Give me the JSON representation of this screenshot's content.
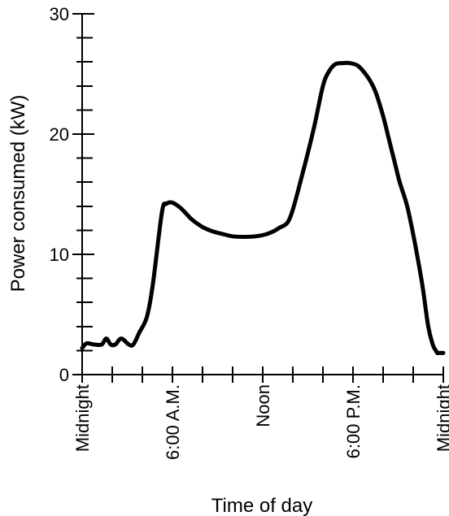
{
  "chart_data": {
    "type": "line",
    "title": "",
    "xlabel": "Time of day",
    "ylabel": "Power consumed (kW)",
    "xlim": [
      0,
      24
    ],
    "ylim": [
      0,
      30
    ],
    "x_ticks": [
      {
        "value": 0,
        "label": "Midnight"
      },
      {
        "value": 6,
        "label": "6:00 A.M."
      },
      {
        "value": 12,
        "label": "Noon"
      },
      {
        "value": 18,
        "label": "6:00 P.M."
      },
      {
        "value": 24,
        "label": "Midnight"
      }
    ],
    "x_minor_tick_step": 2,
    "y_ticks": [
      {
        "value": 0,
        "label": "0"
      },
      {
        "value": 10,
        "label": "10"
      },
      {
        "value": 20,
        "label": "20"
      },
      {
        "value": 30,
        "label": "30"
      }
    ],
    "y_minor_tick_step": 2,
    "grid": false,
    "line_color": "#000000",
    "series": [
      {
        "x": [
          0,
          0.3,
          0.8,
          1.3,
          1.6,
          1.9,
          2.2,
          2.6,
          3.1,
          3.4,
          3.8,
          4.3,
          4.7,
          5.3,
          5.6,
          6.0,
          6.5,
          6.9,
          7.2,
          7.6,
          8.1,
          8.7,
          9.3,
          10.0,
          10.7,
          11.5,
          12.3,
          13.1,
          13.8,
          14.6,
          15.4,
          16.0,
          16.4,
          16.8,
          17.3,
          17.8,
          18.3,
          18.7,
          19.1,
          19.5,
          20.0,
          20.4,
          20.8,
          21.1,
          21.6,
          22.1,
          22.6,
          23.0,
          23.3,
          23.5,
          23.6,
          23.65,
          23.8,
          24.0
        ],
        "y": [
          2.2,
          2.6,
          2.5,
          2.5,
          3.0,
          2.5,
          2.5,
          3.0,
          2.5,
          2.5,
          3.5,
          4.8,
          7.5,
          13.5,
          14.2,
          14.3,
          13.9,
          13.4,
          13.0,
          12.6,
          12.2,
          11.9,
          11.7,
          11.5,
          11.45,
          11.5,
          11.7,
          12.2,
          13.0,
          16.5,
          20.5,
          24.0,
          25.2,
          25.8,
          25.9,
          25.9,
          25.7,
          25.2,
          24.5,
          23.5,
          21.5,
          19.5,
          17.5,
          16.0,
          14.0,
          11.0,
          7.5,
          4.0,
          2.5,
          2.0,
          1.8,
          1.8,
          1.8,
          1.8
        ]
      }
    ]
  }
}
